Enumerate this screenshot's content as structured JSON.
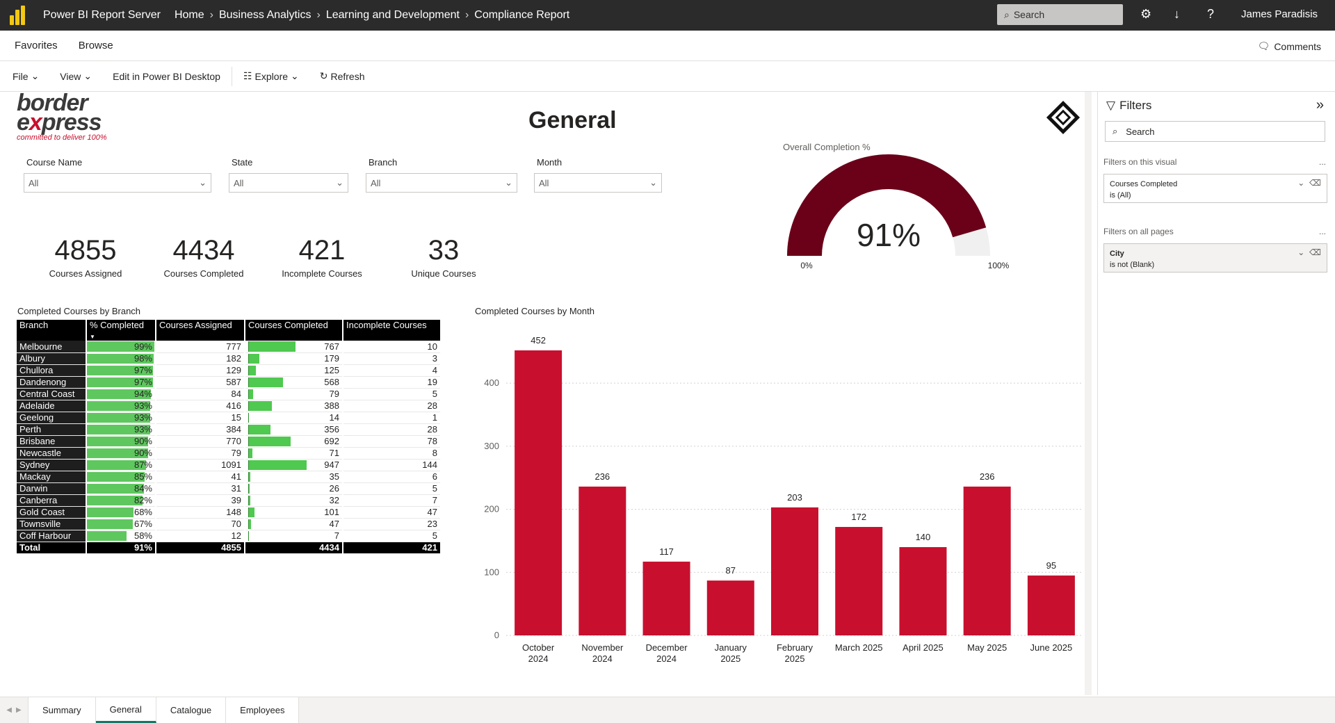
{
  "topbar": {
    "app_title": "Power BI Report Server",
    "breadcrumbs": [
      "Home",
      "Business Analytics",
      "Learning and Development",
      "Compliance Report"
    ],
    "search_placeholder": "Search",
    "user_name": "James Paradisis"
  },
  "nav": {
    "favorites": "Favorites",
    "browse": "Browse",
    "comments": "Comments"
  },
  "toolbar": {
    "file": "File",
    "view": "View",
    "edit": "Edit in Power BI Desktop",
    "explore": "Explore",
    "refresh": "Refresh"
  },
  "report": {
    "brand_line1a": "border",
    "brand_line2a": "e",
    "brand_line2b": "x",
    "brand_line2c": "press",
    "brand_tagline": "committed to deliver 100%",
    "title": "General",
    "slicers": [
      {
        "label": "Course Name",
        "value": "All"
      },
      {
        "label": "State",
        "value": "All"
      },
      {
        "label": "Branch",
        "value": "All"
      },
      {
        "label": "Month",
        "value": "All"
      }
    ],
    "kpis": [
      {
        "value": "4855",
        "label": "Courses Assigned"
      },
      {
        "value": "4434",
        "label": "Courses Completed"
      },
      {
        "value": "421",
        "label": "Incomplete Courses"
      },
      {
        "value": "33",
        "label": "Unique Courses"
      }
    ],
    "gauge": {
      "title": "Overall Completion %",
      "value_label": "91%",
      "value": 0.91,
      "min_label": "0%",
      "max_label": "100%",
      "color": "#6b0019"
    },
    "table_title": "Completed Courses by Branch",
    "table": {
      "headers": [
        "Branch",
        "% Completed",
        "Courses Assigned",
        "Courses Completed",
        "Incomplete Courses"
      ],
      "rows": [
        [
          "Melbourne",
          "99%",
          "777",
          "767",
          "10"
        ],
        [
          "Albury",
          "98%",
          "182",
          "179",
          "3"
        ],
        [
          "Chullora",
          "97%",
          "129",
          "125",
          "4"
        ],
        [
          "Dandenong",
          "97%",
          "587",
          "568",
          "19"
        ],
        [
          "Central Coast",
          "94%",
          "84",
          "79",
          "5"
        ],
        [
          "Adelaide",
          "93%",
          "416",
          "388",
          "28"
        ],
        [
          "Geelong",
          "93%",
          "15",
          "14",
          "1"
        ],
        [
          "Perth",
          "93%",
          "384",
          "356",
          "28"
        ],
        [
          "Brisbane",
          "90%",
          "770",
          "692",
          "78"
        ],
        [
          "Newcastle",
          "90%",
          "79",
          "71",
          "8"
        ],
        [
          "Sydney",
          "87%",
          "1091",
          "947",
          "144"
        ],
        [
          "Mackay",
          "85%",
          "41",
          "35",
          "6"
        ],
        [
          "Darwin",
          "84%",
          "31",
          "26",
          "5"
        ],
        [
          "Canberra",
          "82%",
          "39",
          "32",
          "7"
        ],
        [
          "Gold Coast",
          "68%",
          "148",
          "101",
          "47"
        ],
        [
          "Townsville",
          "67%",
          "70",
          "47",
          "23"
        ],
        [
          "Coff Harbour",
          "58%",
          "12",
          "7",
          "5"
        ]
      ],
      "total": [
        "Total",
        "91%",
        "4855",
        "4434",
        "421"
      ],
      "bar_color": "#5ec75e"
    },
    "chart_title": "Completed Courses by Month"
  },
  "chart_data": {
    "type": "bar",
    "categories": [
      [
        "October",
        "2024"
      ],
      [
        "November",
        "2024"
      ],
      [
        "December",
        "2024"
      ],
      [
        "January",
        "2025"
      ],
      [
        "February",
        "2025"
      ],
      [
        "March 2025"
      ],
      [
        "April 2025"
      ],
      [
        "May 2025"
      ],
      [
        "June 2025"
      ]
    ],
    "values": [
      452,
      236,
      117,
      87,
      203,
      172,
      140,
      236,
      95
    ],
    "title": "Completed Courses by Month",
    "ylim": [
      0,
      452
    ],
    "yticks": [
      0,
      100,
      200,
      300,
      400
    ],
    "color": "#c8102e",
    "grid": true
  },
  "filters": {
    "title": "Filters",
    "search_placeholder": "Search",
    "on_visual_label": "Filters on this visual",
    "visual_filter": {
      "field": "Courses Completed",
      "condition": "is (All)"
    },
    "all_pages_label": "Filters on all pages",
    "page_filter": {
      "field": "City",
      "condition": "is not (Blank)"
    },
    "more": "..."
  },
  "tabs": [
    "Summary",
    "General",
    "Catalogue",
    "Employees"
  ],
  "active_tab": "General"
}
